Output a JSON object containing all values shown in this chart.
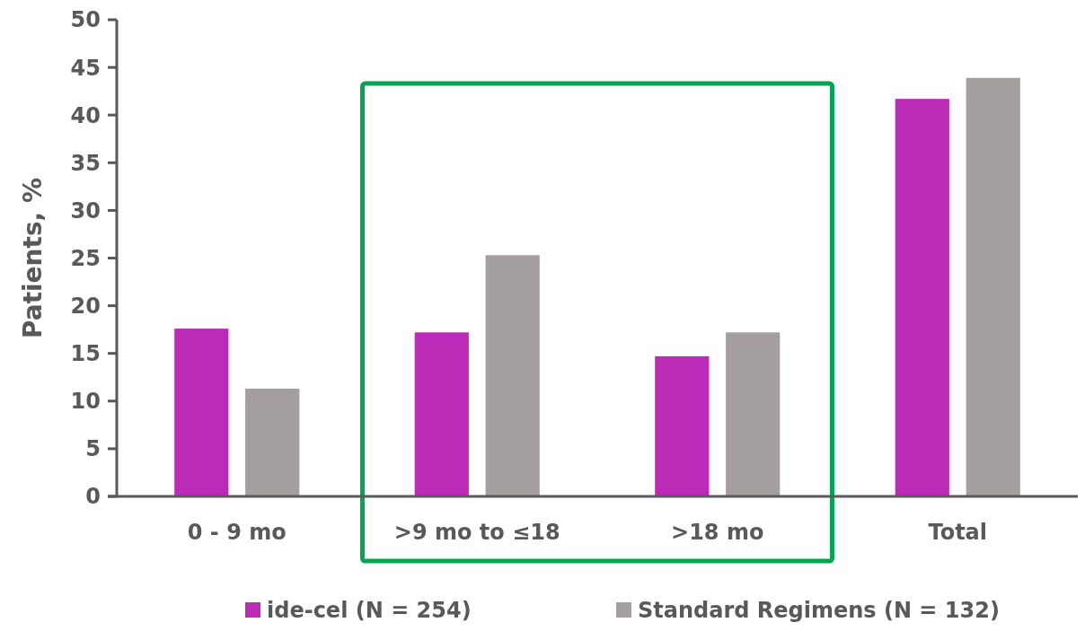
{
  "chart_data": {
    "type": "bar",
    "ylabel": "Patients, %",
    "categories": [
      "0 - 9 mo",
      ">9 mo to ≤18",
      ">18 mo",
      "Total"
    ],
    "series": [
      {
        "name": "ide-cel (N = 254)",
        "color": "#bc2ab8",
        "values": [
          17.6,
          17.2,
          14.7,
          41.7
        ]
      },
      {
        "name": "Standard Regimens (N = 132)",
        "color": "#a59e9e",
        "values": [
          11.3,
          25.3,
          17.2,
          43.9
        ]
      }
    ],
    "ylim": [
      0,
      50
    ],
    "yticks": [
      0,
      5,
      10,
      15,
      20,
      25,
      30,
      35,
      40,
      45,
      50
    ],
    "grid": false,
    "legend": "bottom"
  }
}
